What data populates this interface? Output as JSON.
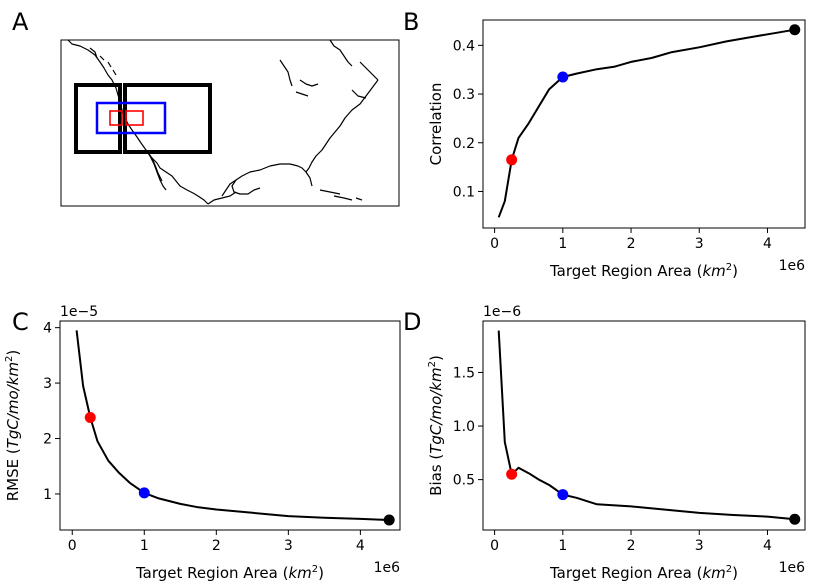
{
  "panel_labels": [
    "A",
    "B",
    "C",
    "D"
  ],
  "colors": {
    "line": "#000000",
    "red": "#ff0000",
    "blue": "#0000ff",
    "black": "#000000"
  },
  "map_panel": {
    "description_color_keys": [
      "black",
      "blue",
      "red"
    ],
    "regions": [
      {
        "name": "large-west",
        "color": "black"
      },
      {
        "name": "large-east",
        "color": "black"
      },
      {
        "name": "medium",
        "color": "blue"
      },
      {
        "name": "small-west",
        "color": "red"
      },
      {
        "name": "small-east",
        "color": "red"
      }
    ]
  },
  "chart_data": [
    {
      "panel": "B",
      "type": "line",
      "xlabel": "Target Region Area ($km^2$)",
      "ylabel": "Correlation",
      "x_offset_label": "1e6",
      "xlim": [
        -0.17,
        4.55
      ],
      "ylim": [
        0.025,
        0.452
      ],
      "xticks": [
        0,
        1,
        2,
        3,
        4
      ],
      "yticks": [
        0.1,
        0.2,
        0.3,
        0.4
      ],
      "ytick_labels": [
        "0.1",
        "0.2",
        "0.3",
        "0.4"
      ],
      "series": [
        {
          "x": [
            0.06,
            0.15,
            0.25,
            0.35,
            0.5,
            0.65,
            0.8,
            1.0,
            1.2,
            1.5,
            1.75,
            2.0,
            2.3,
            2.6,
            3.0,
            3.4,
            3.8,
            4.1,
            4.4
          ],
          "y": [
            0.047,
            0.08,
            0.165,
            0.21,
            0.24,
            0.275,
            0.31,
            0.335,
            0.342,
            0.351,
            0.356,
            0.366,
            0.374,
            0.386,
            0.396,
            0.408,
            0.418,
            0.425,
            0.432
          ]
        }
      ],
      "markers": [
        {
          "x": 0.25,
          "y": 0.165,
          "color": "red"
        },
        {
          "x": 1.0,
          "y": 0.335,
          "color": "blue"
        },
        {
          "x": 4.4,
          "y": 0.432,
          "color": "black"
        }
      ]
    },
    {
      "panel": "C",
      "type": "line",
      "xlabel": "Target Region Area ($km^2$)",
      "ylabel": "RMSE ($TgC/mo/km^2$)",
      "x_offset_label": "1e6",
      "y_offset_label": "1e−5",
      "xlim": [
        -0.17,
        4.55
      ],
      "ylim": [
        0.35,
        4.12
      ],
      "xticks": [
        0,
        1,
        2,
        3,
        4
      ],
      "yticks": [
        1,
        2,
        3,
        4
      ],
      "ytick_labels": [
        "1",
        "2",
        "3",
        "4"
      ],
      "series": [
        {
          "x": [
            0.06,
            0.15,
            0.25,
            0.35,
            0.5,
            0.65,
            0.8,
            1.0,
            1.2,
            1.5,
            1.75,
            2.0,
            2.5,
            3.0,
            3.5,
            4.0,
            4.4
          ],
          "y": [
            3.95,
            2.95,
            2.38,
            1.95,
            1.6,
            1.38,
            1.2,
            1.02,
            0.92,
            0.82,
            0.76,
            0.72,
            0.66,
            0.6,
            0.57,
            0.55,
            0.53
          ]
        }
      ],
      "markers": [
        {
          "x": 0.25,
          "y": 2.38,
          "color": "red"
        },
        {
          "x": 1.0,
          "y": 1.02,
          "color": "blue"
        },
        {
          "x": 4.4,
          "y": 0.53,
          "color": "black"
        }
      ]
    },
    {
      "panel": "D",
      "type": "line",
      "xlabel": "Target Region Area ($km^2$)",
      "ylabel": "Bias ($TgC/mo/km^2$)",
      "x_offset_label": "1e6",
      "y_offset_label": "1e−6",
      "xlim": [
        -0.17,
        4.55
      ],
      "ylim": [
        0.03,
        1.98
      ],
      "xticks": [
        0,
        1,
        2,
        3,
        4
      ],
      "yticks": [
        0.5,
        1.0,
        1.5
      ],
      "ytick_labels": [
        "0.5",
        "1.0",
        "1.5"
      ],
      "series": [
        {
          "x": [
            0.06,
            0.15,
            0.25,
            0.35,
            0.5,
            0.65,
            0.8,
            1.0,
            1.2,
            1.5,
            2.0,
            2.5,
            3.0,
            3.5,
            4.0,
            4.4
          ],
          "y": [
            1.89,
            0.85,
            0.55,
            0.61,
            0.56,
            0.5,
            0.45,
            0.36,
            0.33,
            0.27,
            0.25,
            0.22,
            0.19,
            0.17,
            0.155,
            0.13
          ]
        }
      ],
      "markers": [
        {
          "x": 0.25,
          "y": 0.55,
          "color": "red"
        },
        {
          "x": 1.0,
          "y": 0.36,
          "color": "blue"
        },
        {
          "x": 4.4,
          "y": 0.13,
          "color": "black"
        }
      ]
    }
  ]
}
